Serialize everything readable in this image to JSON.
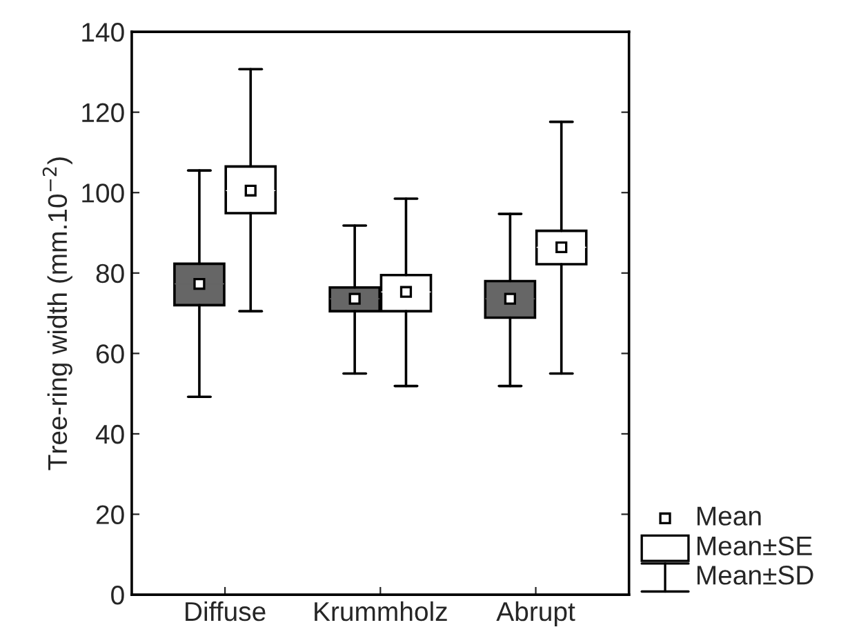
{
  "chart_data": {
    "type": "box",
    "ylabel": "Tree-ring width (mm.10$^{−2}$)",
    "categories": [
      "Diffuse",
      "Krummholz",
      "Abrupt"
    ],
    "series": [
      {
        "color": "#666666",
        "boxes": [
          {
            "low": 49.2,
            "q1": 72.0,
            "median": 77.3,
            "q3": 82.3,
            "high": 105.5,
            "mean": 77.3
          },
          {
            "low": 55.0,
            "q1": 70.5,
            "median": 73.6,
            "q3": 76.4,
            "high": 91.8,
            "mean": 73.6
          },
          {
            "low": 51.9,
            "q1": 68.9,
            "median": 73.6,
            "q3": 78.0,
            "high": 94.7,
            "mean": 73.6
          }
        ]
      },
      {
        "color": "#ffffff",
        "boxes": [
          {
            "low": 70.5,
            "q1": 94.9,
            "median": 100.5,
            "q3": 106.5,
            "high": 130.7,
            "mean": 100.5
          },
          {
            "low": 51.9,
            "q1": 70.5,
            "median": 75.3,
            "q3": 79.5,
            "high": 98.5,
            "mean": 75.3
          },
          {
            "low": 55.0,
            "q1": 82.2,
            "median": 86.4,
            "q3": 90.5,
            "high": 117.6,
            "mean": 86.4
          }
        ]
      }
    ],
    "annotations": [
      "Mean",
      "Mean±SE",
      "Mean±SD"
    ],
    "ylim": [
      0,
      140
    ],
    "yticks": [
      0,
      20,
      40,
      60,
      80,
      100,
      120,
      140
    ],
    "grid": false
  }
}
